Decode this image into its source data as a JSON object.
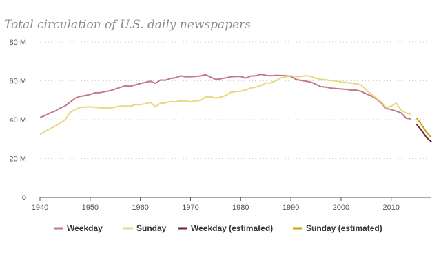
{
  "chart_data": {
    "type": "line",
    "title": "Total circulation of U.S. daily newspapers",
    "xlabel": "",
    "ylabel": "",
    "xlim": [
      1940,
      2018
    ],
    "ylim": [
      0,
      80
    ],
    "y_ticks": [
      0,
      20,
      40,
      60,
      80
    ],
    "y_tick_labels": [
      "0",
      "20 M",
      "40 M",
      "60 M",
      "80 M"
    ],
    "x_ticks": [
      1940,
      1950,
      1960,
      1970,
      1980,
      1990,
      2000,
      2010
    ],
    "x_tick_labels": [
      "1940",
      "1950",
      "1960",
      "1970",
      "1980",
      "1990",
      "2000",
      "2010"
    ],
    "grid": "horizontal dotted",
    "legend_position": "bottom",
    "series": [
      {
        "name": "Weekday",
        "color": "#c27885",
        "x": [
          1940,
          1941,
          1942,
          1943,
          1944,
          1945,
          1946,
          1947,
          1948,
          1949,
          1950,
          1951,
          1952,
          1953,
          1954,
          1955,
          1956,
          1957,
          1958,
          1959,
          1960,
          1961,
          1962,
          1963,
          1964,
          1965,
          1966,
          1967,
          1968,
          1969,
          1970,
          1971,
          1972,
          1973,
          1974,
          1975,
          1976,
          1977,
          1978,
          1979,
          1980,
          1981,
          1982,
          1983,
          1984,
          1985,
          1986,
          1987,
          1988,
          1989,
          1990,
          1991,
          1992,
          1993,
          1994,
          1995,
          1996,
          1997,
          1998,
          1999,
          2000,
          2001,
          2002,
          2003,
          2004,
          2005,
          2006,
          2007,
          2008,
          2009,
          2010,
          2011,
          2012,
          2013,
          2014
        ],
        "values": [
          41.1,
          42.1,
          43.4,
          44.4,
          45.9,
          47.0,
          49.0,
          51.0,
          52.0,
          52.4,
          53.0,
          53.8,
          53.9,
          54.4,
          54.9,
          55.7,
          56.6,
          57.4,
          57.2,
          57.9,
          58.6,
          59.2,
          59.8,
          58.7,
          60.4,
          60.3,
          61.2,
          61.5,
          62.5,
          62.1,
          62.1,
          62.2,
          62.5,
          63.1,
          61.9,
          60.7,
          61.0,
          61.5,
          62.0,
          62.2,
          62.2,
          61.4,
          62.4,
          62.6,
          63.3,
          62.8,
          62.5,
          62.8,
          62.7,
          62.6,
          62.3,
          60.7,
          60.2,
          59.8,
          59.3,
          58.2,
          57.0,
          56.7,
          56.2,
          56.0,
          55.8,
          55.6,
          55.2,
          55.2,
          54.6,
          53.3,
          52.3,
          50.7,
          48.6,
          45.7,
          45.2,
          44.4,
          43.4,
          40.7,
          40.4
        ]
      },
      {
        "name": "Sunday",
        "color": "#e8d77d",
        "x": [
          1940,
          1941,
          1942,
          1943,
          1944,
          1945,
          1946,
          1947,
          1948,
          1949,
          1950,
          1951,
          1952,
          1953,
          1954,
          1955,
          1956,
          1957,
          1958,
          1959,
          1960,
          1961,
          1962,
          1963,
          1964,
          1965,
          1966,
          1967,
          1968,
          1969,
          1970,
          1971,
          1972,
          1973,
          1974,
          1975,
          1976,
          1977,
          1978,
          1979,
          1980,
          1981,
          1982,
          1983,
          1984,
          1985,
          1986,
          1987,
          1988,
          1989,
          1990,
          1991,
          1992,
          1993,
          1994,
          1995,
          1996,
          1997,
          1998,
          1999,
          2000,
          2001,
          2002,
          2003,
          2004,
          2005,
          2006,
          2007,
          2008,
          2009,
          2010,
          2011,
          2012,
          2013,
          2014
        ],
        "values": [
          32.4,
          33.9,
          35.3,
          36.7,
          38.2,
          39.9,
          43.7,
          45.2,
          46.3,
          46.5,
          46.6,
          46.3,
          46.2,
          45.9,
          46.0,
          46.4,
          47.0,
          47.0,
          46.9,
          47.8,
          47.7,
          48.2,
          48.9,
          46.8,
          48.4,
          48.6,
          49.3,
          49.2,
          49.7,
          49.7,
          49.2,
          49.7,
          50.0,
          51.7,
          51.7,
          51.1,
          51.6,
          52.4,
          54.0,
          54.4,
          54.7,
          55.2,
          56.3,
          56.7,
          57.5,
          58.8,
          58.9,
          60.1,
          61.5,
          62.0,
          62.6,
          62.1,
          62.2,
          62.6,
          62.3,
          61.2,
          60.8,
          60.5,
          60.1,
          59.9,
          59.4,
          59.1,
          58.8,
          58.5,
          57.8,
          55.3,
          53.2,
          51.2,
          49.1,
          46.2,
          46.9,
          48.5,
          44.8,
          43.3,
          42.8
        ]
      },
      {
        "name": "Weekday (estimated)",
        "color": "#6b2334",
        "x": [
          2015,
          2016,
          2017,
          2018
        ],
        "values": [
          37.7,
          34.7,
          30.9,
          28.6
        ]
      },
      {
        "name": "Sunday (estimated)",
        "color": "#c9a400",
        "x": [
          2015,
          2016,
          2017,
          2018
        ],
        "values": [
          41.0,
          37.6,
          33.7,
          30.8
        ]
      }
    ]
  }
}
